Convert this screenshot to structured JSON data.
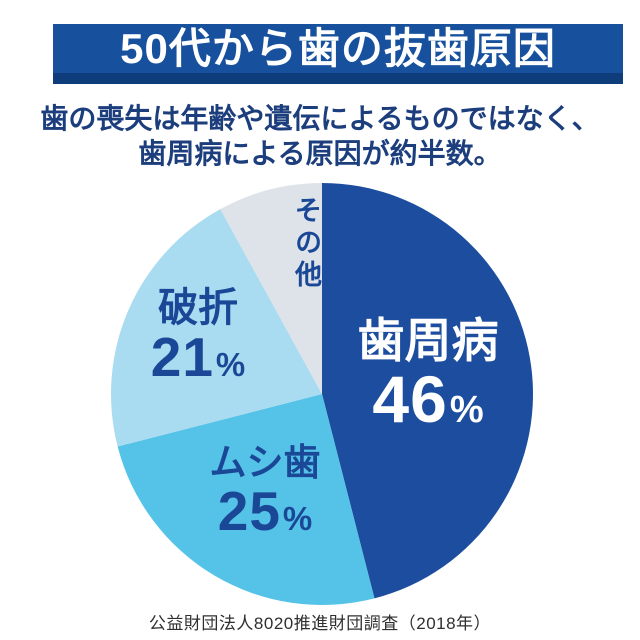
{
  "header": {
    "title": "50代から歯の抜歯原因"
  },
  "subtitle": {
    "line1": "歯の喪失は年齢や遺伝によるものではなく、",
    "line2": "歯周病による原因が約半数。"
  },
  "source": {
    "text": "公益財団法人8020推進財団調査（2018年）"
  },
  "colors": {
    "banner_bg": "#17519e",
    "banner_shadow": "#0f3d7c",
    "banner_text": "#ffffff",
    "subtitle_text": "#1c3e7d",
    "label_navy": "#1a4897",
    "source_text": "#2f2f2f",
    "background": "#ffffff"
  },
  "chart_data": {
    "type": "pie",
    "title": "50代から歯の抜歯原因",
    "start_angle_deg": 0,
    "direction": "clockwise",
    "percent_symbol": "%",
    "legend_position": "inside-slices",
    "slices": [
      {
        "label": "歯周病",
        "value_pct": 46,
        "display_value": "46",
        "color": "#1c4d9e",
        "label_color": "#ffffff"
      },
      {
        "label": "ムシ歯",
        "value_pct": 25,
        "display_value": "25",
        "color": "#55c3e8",
        "label_color": "#1a4897"
      },
      {
        "label": "破折",
        "value_pct": 21,
        "display_value": "21",
        "color": "#aadcf1",
        "label_color": "#1a4897"
      },
      {
        "label": "その他",
        "value_pct": 8,
        "display_value": "",
        "color": "#dde3e8",
        "label_color": "#1a4897"
      }
    ]
  }
}
